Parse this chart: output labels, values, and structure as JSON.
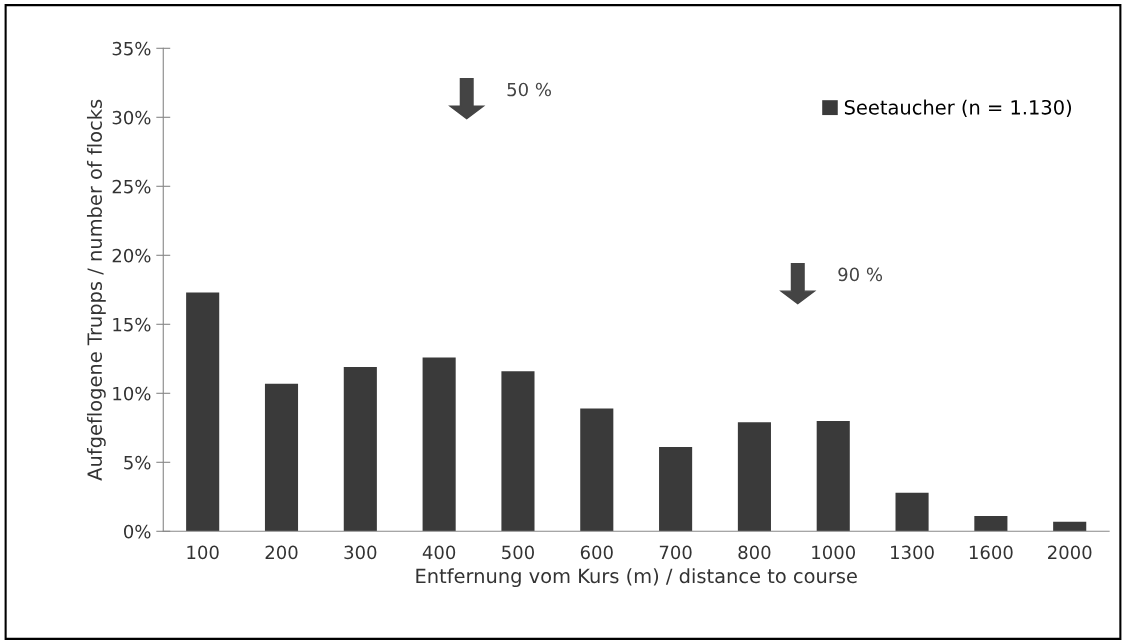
{
  "chart_data": {
    "type": "bar",
    "xlabel": "Entfernung vom Kurs (m) / distance to course",
    "ylabel": "Aufgeflogene Trupps / number of flocks",
    "categories": [
      "100",
      "200",
      "300",
      "400",
      "500",
      "600",
      "700",
      "800",
      "1000",
      "1300",
      "1600",
      "2000"
    ],
    "series": [
      {
        "name": "Seetaucher (n = 1.130)",
        "color": "#3a3a3a",
        "values": [
          17.3,
          10.7,
          11.9,
          12.6,
          11.6,
          8.9,
          6.1,
          7.9,
          8.0,
          2.8,
          1.1,
          0.7
        ]
      }
    ],
    "ylim": [
      0,
      35
    ],
    "yticks": [
      {
        "value": 0,
        "label": "0%"
      },
      {
        "value": 5,
        "label": "5%"
      },
      {
        "value": 10,
        "label": "10%"
      },
      {
        "value": 15,
        "label": "15%"
      },
      {
        "value": 20,
        "label": "20%"
      },
      {
        "value": 25,
        "label": "25%"
      },
      {
        "value": 30,
        "label": "30%"
      },
      {
        "value": 35,
        "label": "35%"
      }
    ],
    "annotations": [
      "50 %",
      "90 %"
    ],
    "legend": "top right",
    "grid": false
  }
}
